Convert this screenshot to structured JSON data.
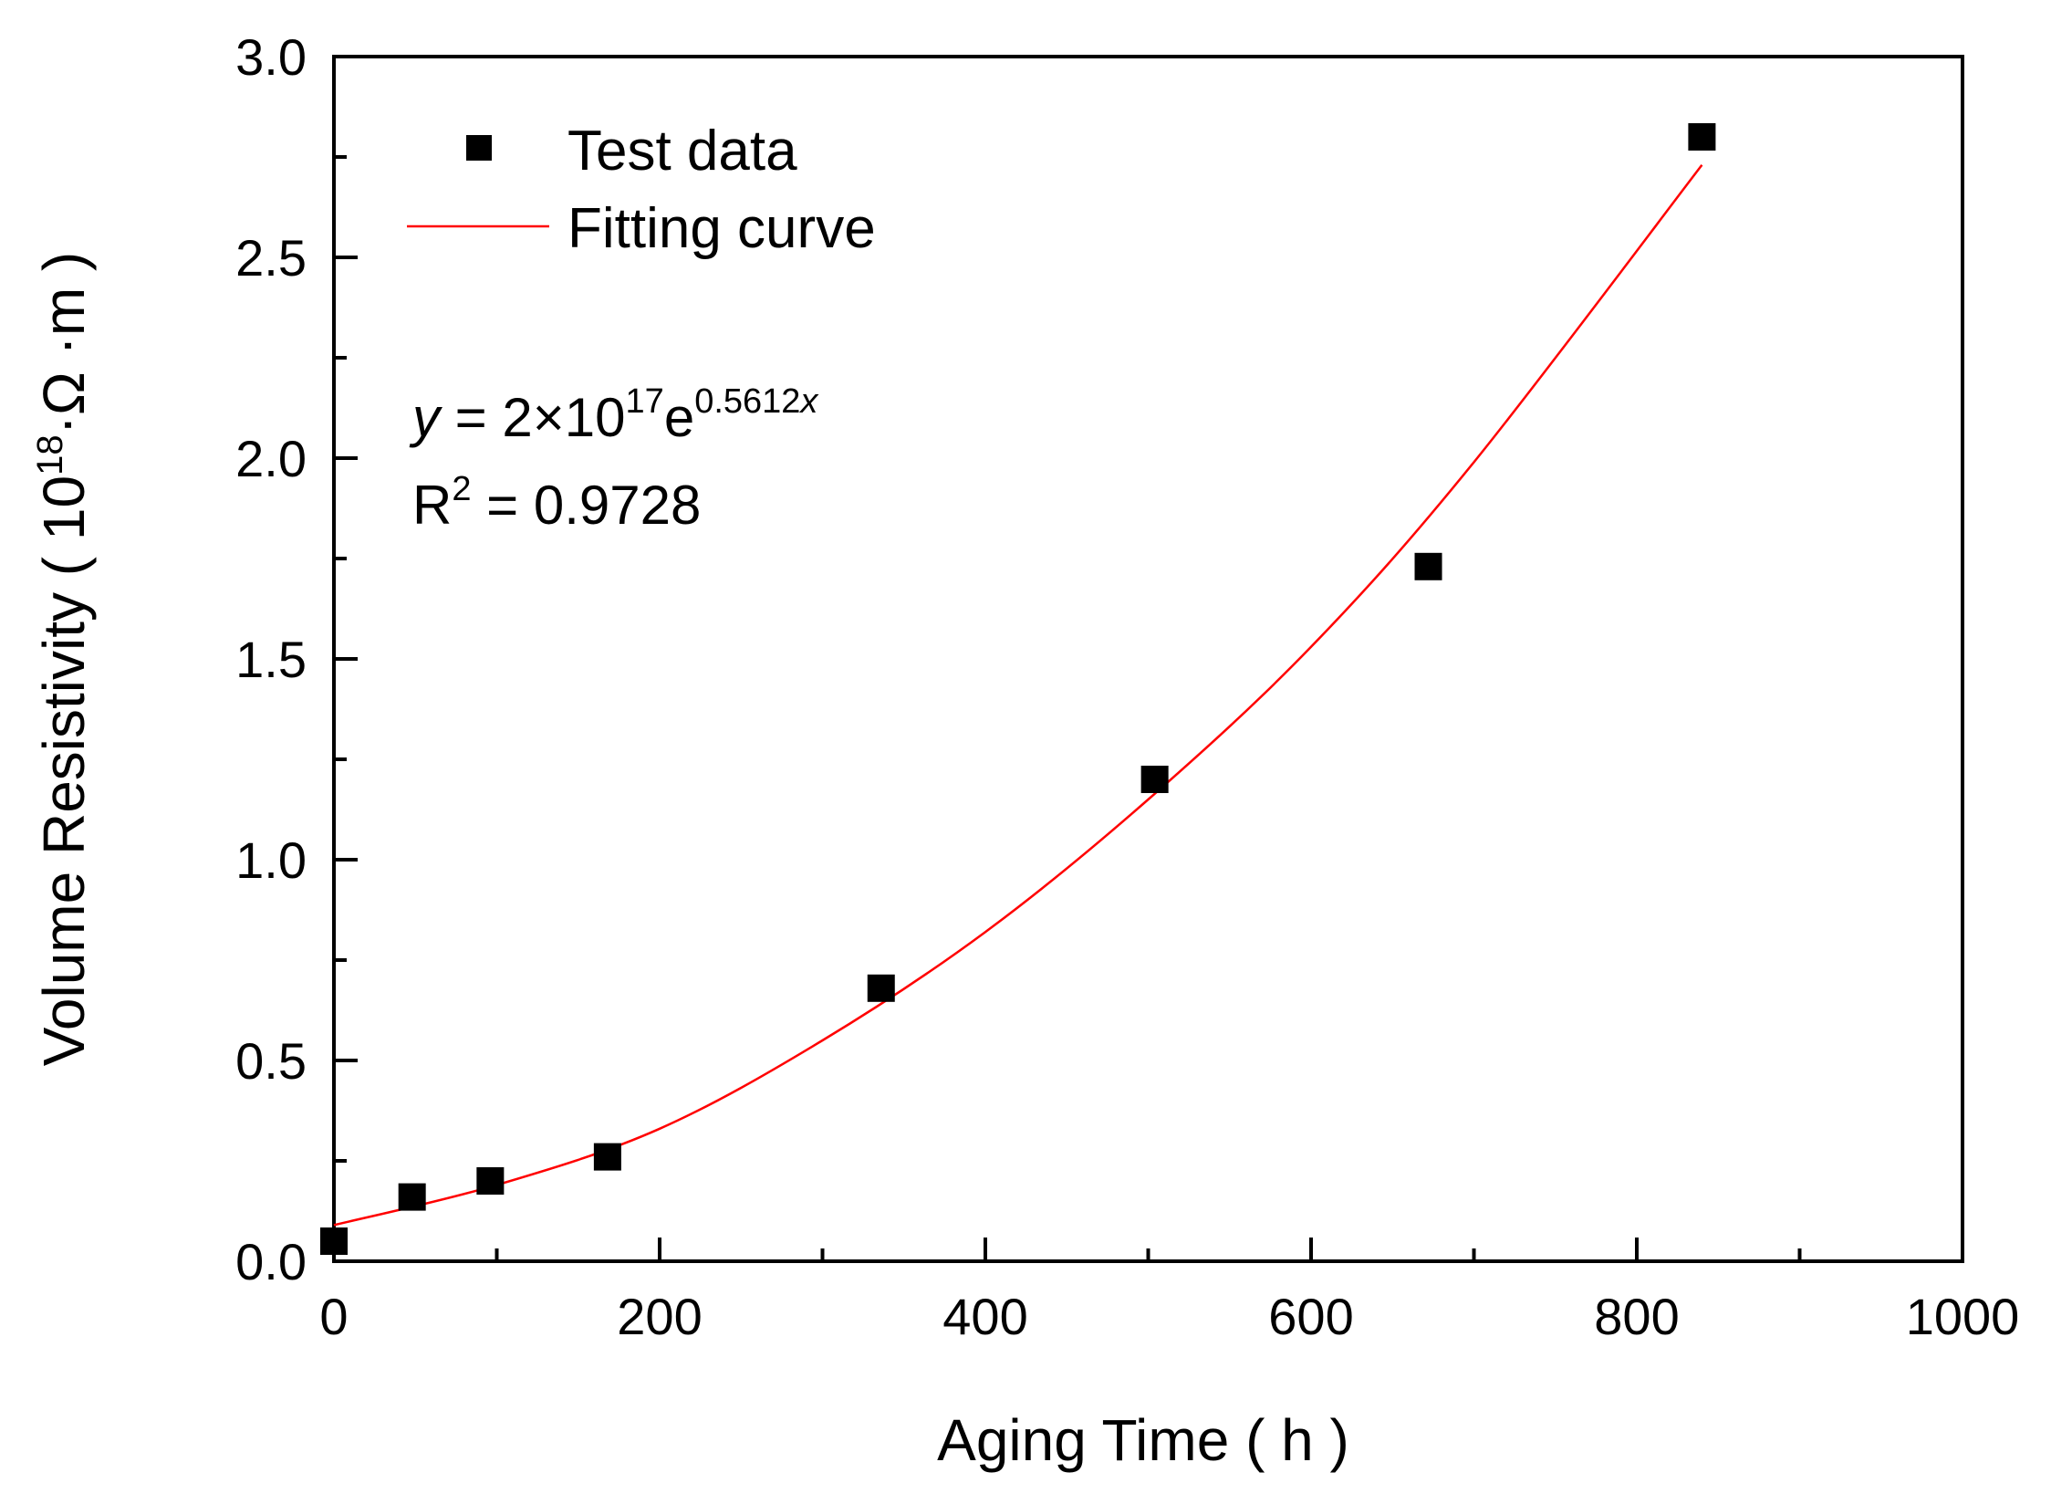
{
  "chart_data": {
    "type": "scatter",
    "title": "",
    "xlabel": "Aging Time ( h )",
    "ylabel": {
      "prefix": "Volume Resistivity ( 10",
      "exponent": "18",
      "suffix": "·Ω ·m )"
    },
    "xlim": [
      0,
      1000
    ],
    "ylim": [
      0,
      3.0
    ],
    "x_ticks": [
      0,
      200,
      400,
      600,
      800,
      1000
    ],
    "x_tick_labels": [
      "0",
      "200",
      "400",
      "600",
      "800",
      "1000"
    ],
    "y_ticks": [
      0,
      0.5,
      1.0,
      1.5,
      2.0,
      2.5,
      3.0
    ],
    "y_tick_labels": [
      "0.0",
      "0.5",
      "1.0",
      "1.5",
      "2.0",
      "2.5",
      "3.0"
    ],
    "grid": false,
    "legend_position": "top-left",
    "series": [
      {
        "name": "Test data",
        "type": "scatter",
        "marker": "square",
        "color": "#000000",
        "x": [
          0,
          48,
          96,
          168,
          336,
          504,
          672,
          840
        ],
        "y": [
          0.05,
          0.16,
          0.2,
          0.26,
          0.68,
          1.2,
          1.73,
          2.8
        ]
      },
      {
        "name": "Fitting curve",
        "type": "line",
        "color": "#ff0000",
        "x": [
          0,
          100,
          200,
          300,
          400,
          500,
          600,
          700,
          840
        ],
        "y": [
          0.09,
          0.19,
          0.33,
          0.55,
          0.82,
          1.15,
          1.53,
          1.99,
          2.73
        ]
      }
    ],
    "annotations": {
      "equation": {
        "y": "y",
        "eq_base": " = 2×10",
        "exp1": "17",
        "e": "e",
        "exp2_num": "0.5612",
        "exp2_var": "x"
      },
      "r2": {
        "r": "R",
        "sup": "2",
        "rest": " = 0.9728"
      }
    }
  }
}
